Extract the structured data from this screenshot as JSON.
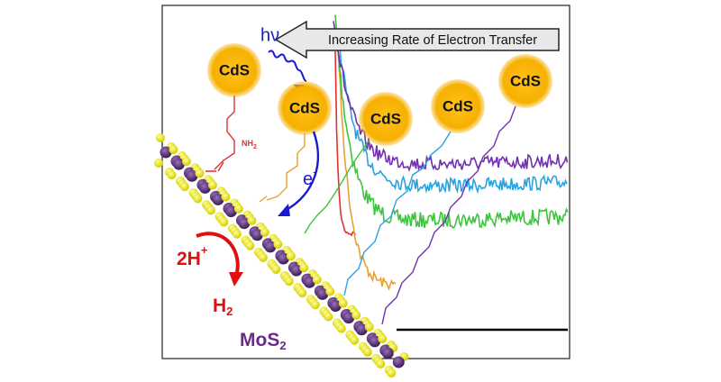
{
  "banner": "Increasing Rate of Electron Transfer",
  "photon": "hν",
  "particles": [
    "CdS",
    "CdS",
    "CdS",
    "CdS",
    "CdS"
  ],
  "amine": {
    "text": "NH",
    "sub": "2"
  },
  "electron": {
    "text": "e",
    "sup": "-"
  },
  "proton": {
    "text": "2H",
    "sup": "+"
  },
  "hydrogen": {
    "text": "H",
    "sub": "2"
  },
  "material": {
    "text": "MoS",
    "sub": "2"
  }
}
